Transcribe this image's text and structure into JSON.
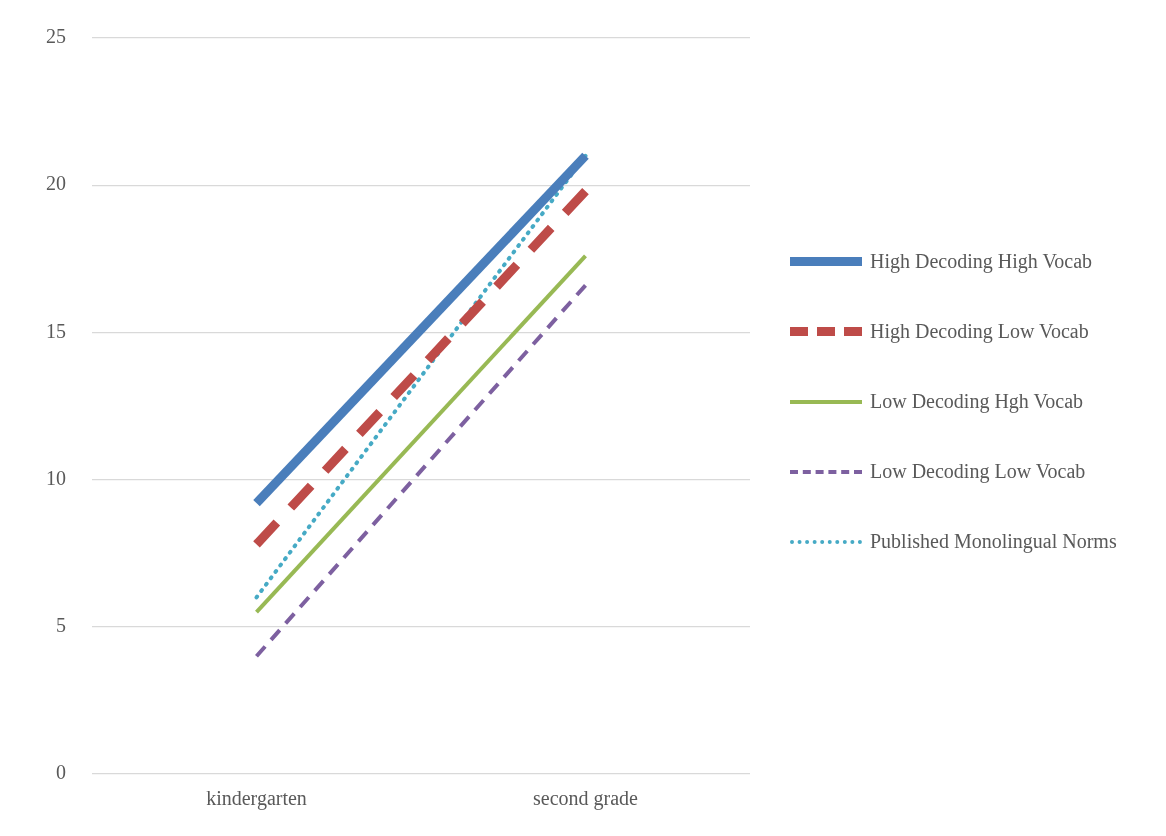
{
  "chart_data": {
    "type": "line",
    "categories": [
      "kindergarten",
      "second grade"
    ],
    "series": [
      {
        "name": "High Decoding High Vocab",
        "color": "#4a7ebb",
        "values": [
          9.2,
          21.0
        ],
        "line_style": "solid"
      },
      {
        "name": "High Decoding Low Vocab",
        "color": "#be4b48",
        "values": [
          7.8,
          19.8
        ],
        "line_style": "dashed"
      },
      {
        "name": "Low Decoding Hgh Vocab",
        "color": "#98b954",
        "values": [
          5.5,
          17.6
        ],
        "line_style": "solid"
      },
      {
        "name": "Low Decoding Low Vocab",
        "color": "#7d60a0",
        "values": [
          4.0,
          16.6
        ],
        "line_style": "dashed"
      },
      {
        "name": "Published Monolingual Norms",
        "color": "#46aac5",
        "values": [
          6.0,
          21.0
        ],
        "line_style": "dotted"
      }
    ],
    "ylim": [
      0,
      25
    ],
    "yticks": [
      0,
      5,
      10,
      15,
      20,
      25
    ],
    "grid": "y",
    "legend": "right",
    "marker": "none"
  }
}
